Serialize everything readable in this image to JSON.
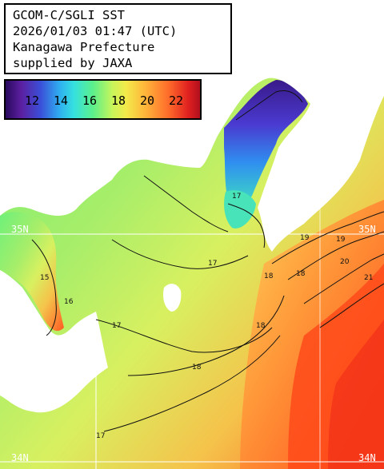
{
  "info": {
    "line1": "GCOM-C/SGLI SST",
    "line2": "2026/01/03 01:47 (UTC)",
    "line3": "Kanagawa Prefecture",
    "line4": "supplied by JAXA"
  },
  "legend": {
    "ticks": [
      "12",
      "14",
      "16",
      "18",
      "20",
      "22"
    ]
  },
  "grid": {
    "lat_north": "35N",
    "lat_north_right": "35N",
    "lat_south": "34N",
    "lat_south_right": "34N"
  },
  "contours": [
    "15",
    "16",
    "17",
    "18",
    "17",
    "18",
    "19",
    "20",
    "21",
    "18",
    "17",
    "17",
    "18",
    "19"
  ]
}
